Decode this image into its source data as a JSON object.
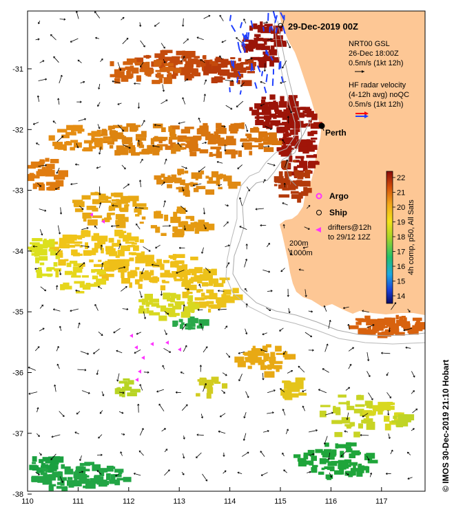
{
  "map": {
    "title": "29-Dec-2019 00Z",
    "credit": "© IMOS 30-Dec-2019 21:10 Hobart",
    "x_ticks": [
      "110",
      "111",
      "112",
      "113",
      "114",
      "115",
      "116",
      "117"
    ],
    "y_ticks": [
      "-31",
      "-32",
      "-33",
      "-34",
      "-35",
      "-36",
      "-37",
      "-38"
    ],
    "legend": {
      "nrt_line1": "NRT00 GSL",
      "nrt_line2": "26-Dec 18:00Z",
      "nrt_line3": "0.5m/s (1kt 12h)",
      "hf_line1": "HF radar velocity",
      "hf_line2": "(4-12h avg) noQC",
      "hf_line3": "0.5m/s (1kt 12h)",
      "argo": "Argo",
      "ship": "Ship",
      "drifters_line1": "drifters@12h",
      "drifters_line2": "to 29/12 12Z"
    },
    "depth_labels": {
      "d200": "200m",
      "d1000": "1000m"
    },
    "city": {
      "name": "Perth"
    },
    "colorbar": {
      "title": "4h comp, p50, All Sats",
      "ticks": [
        "22",
        "21",
        "20",
        "19",
        "18",
        "17",
        "16",
        "15",
        "14"
      ]
    },
    "colors": {
      "land": "#fdc795",
      "hf_red": "#ff0000",
      "hf_blue": "#1f3fff",
      "argo": "#ff33ff",
      "drifter": "#ff33ff"
    }
  }
}
